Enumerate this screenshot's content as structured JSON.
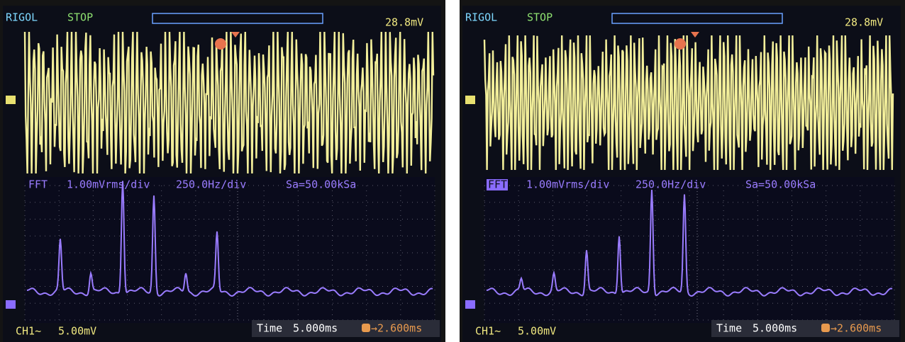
{
  "screens": [
    {
      "header": {
        "brand": "RIGOL",
        "status": "STOP",
        "trigger_level": "28.8mV"
      },
      "fft": {
        "label": "FFT",
        "vertical": "1.00mVrms/div",
        "horizontal": "250.0Hz/div",
        "sample_rate": "Sa=50.00kSa"
      },
      "footer": {
        "channel": "CH1~",
        "channel_scale": "5.00mV",
        "time_label": "Time",
        "time_scale": "5.000ms",
        "trigger_offset": "→2.600ms"
      }
    },
    {
      "header": {
        "brand": "RIGOL",
        "status": "STOP",
        "trigger_level": "28.8mV"
      },
      "fft": {
        "label": "FFT",
        "vertical": "1.00mVrms/div",
        "horizontal": "250.0Hz/div",
        "sample_rate": "Sa=50.00kSa"
      },
      "footer": {
        "channel": "CH1~",
        "channel_scale": "5.00mV",
        "time_label": "Time",
        "time_scale": "5.000ms",
        "trigger_offset": "→2.600ms"
      }
    }
  ]
}
